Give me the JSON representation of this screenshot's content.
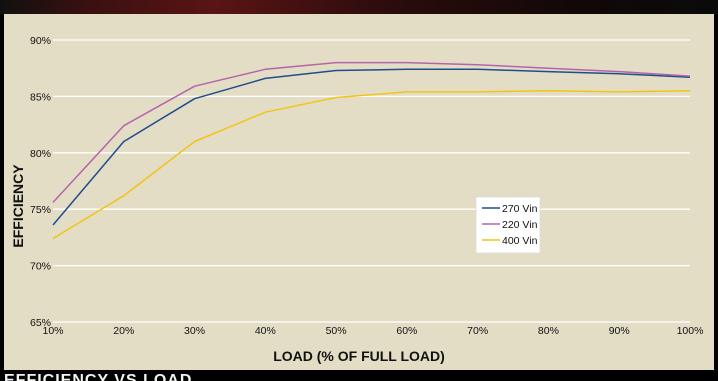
{
  "chart_data": {
    "type": "line",
    "title": "",
    "xlabel": "LOAD (% OF FULL LOAD)",
    "ylabel": "EFFICIENCY",
    "x": [
      10,
      20,
      30,
      40,
      50,
      60,
      70,
      80,
      90,
      100
    ],
    "x_tick_labels": [
      "10%",
      "20%",
      "30%",
      "40%",
      "50%",
      "60%",
      "70%",
      "80%",
      "90%",
      "100%"
    ],
    "y_ticks": [
      65,
      70,
      75,
      80,
      85,
      90
    ],
    "y_tick_labels": [
      "65%",
      "70%",
      "75%",
      "80%",
      "85%",
      "90%"
    ],
    "xlim": [
      10,
      100
    ],
    "ylim": [
      65,
      90
    ],
    "grid": "horizontal",
    "legend_position": "center-right",
    "series": [
      {
        "name": "270 Vin",
        "color": "#1f4e8c",
        "values": [
          73.6,
          81.0,
          84.8,
          86.6,
          87.3,
          87.4,
          87.4,
          87.2,
          87.0,
          86.7
        ]
      },
      {
        "name": "220 Vin",
        "color": "#b565a7",
        "values": [
          75.6,
          82.4,
          85.9,
          87.4,
          88.0,
          88.0,
          87.8,
          87.5,
          87.2,
          86.8
        ]
      },
      {
        "name": "400 Vin",
        "color": "#f2c418",
        "values": [
          72.4,
          76.2,
          81.0,
          83.6,
          84.9,
          85.4,
          85.4,
          85.5,
          85.4,
          85.5
        ]
      }
    ]
  },
  "footer_partial_text": "EFFICIENCY VS LOAD"
}
